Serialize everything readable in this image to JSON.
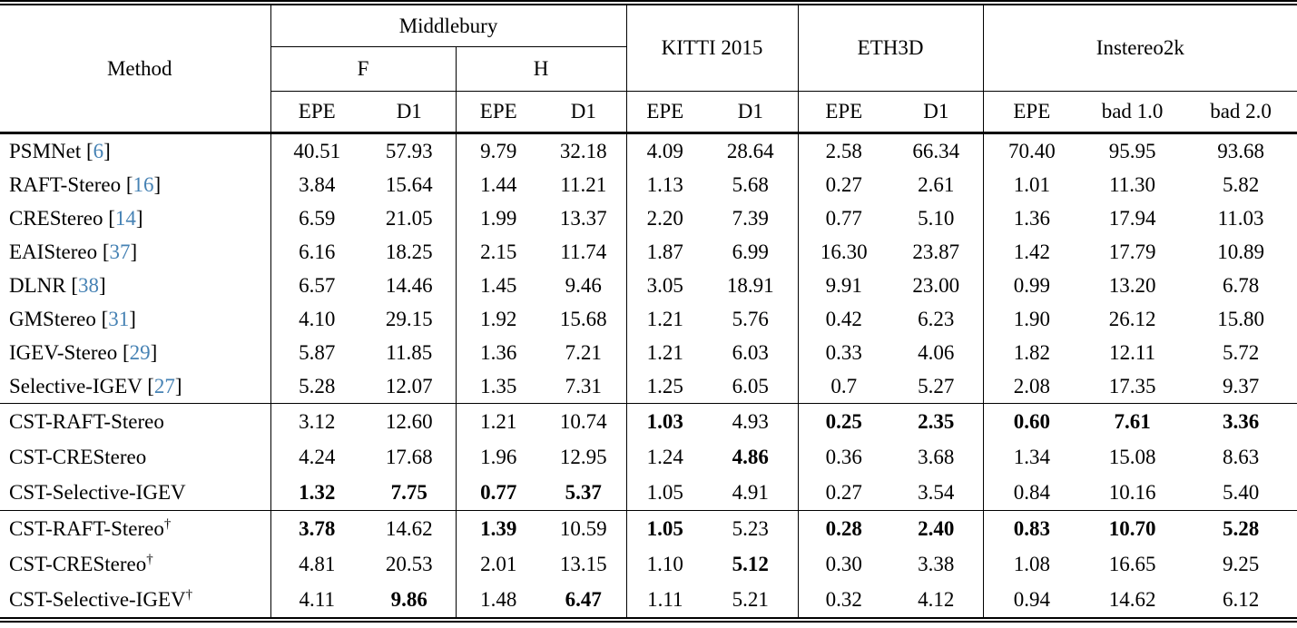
{
  "colors": {
    "citation_blue": "#4682b4",
    "text": "#000000",
    "background": "#ffffff"
  },
  "header": {
    "method_label": "Method",
    "middlebury": {
      "label": "Middlebury",
      "f": "F",
      "h": "H"
    },
    "kitti": "KITTI 2015",
    "eth3d": "ETH3D",
    "instereo2k": "Instereo2k",
    "metrics": [
      "EPE",
      "D1",
      "EPE",
      "D1",
      "EPE",
      "D1",
      "EPE",
      "D1",
      "EPE",
      "bad 1.0",
      "bad 2.0"
    ]
  },
  "sections": [
    {
      "rows": [
        {
          "method": "PSMNet",
          "cite": "6",
          "dagger": false,
          "values": [
            "40.51",
            "57.93",
            "9.79",
            "32.18",
            "4.09",
            "28.64",
            "2.58",
            "66.34",
            "70.40",
            "95.95",
            "93.68"
          ],
          "bold": [
            0,
            0,
            0,
            0,
            0,
            0,
            0,
            0,
            0,
            0,
            0
          ]
        },
        {
          "method": "RAFT-Stereo",
          "cite": "16",
          "dagger": false,
          "values": [
            "3.84",
            "15.64",
            "1.44",
            "11.21",
            "1.13",
            "5.68",
            "0.27",
            "2.61",
            "1.01",
            "11.30",
            "5.82"
          ],
          "bold": [
            0,
            0,
            0,
            0,
            0,
            0,
            0,
            0,
            0,
            0,
            0
          ]
        },
        {
          "method": "CREStereo",
          "cite": "14",
          "dagger": false,
          "values": [
            "6.59",
            "21.05",
            "1.99",
            "13.37",
            "2.20",
            "7.39",
            "0.77",
            "5.10",
            "1.36",
            "17.94",
            "11.03"
          ],
          "bold": [
            0,
            0,
            0,
            0,
            0,
            0,
            0,
            0,
            0,
            0,
            0
          ]
        },
        {
          "method": "EAIStereo",
          "cite": "37",
          "dagger": false,
          "values": [
            "6.16",
            "18.25",
            "2.15",
            "11.74",
            "1.87",
            "6.99",
            "16.30",
            "23.87",
            "1.42",
            "17.79",
            "10.89"
          ],
          "bold": [
            0,
            0,
            0,
            0,
            0,
            0,
            0,
            0,
            0,
            0,
            0
          ]
        },
        {
          "method": "DLNR",
          "cite": "38",
          "dagger": false,
          "values": [
            "6.57",
            "14.46",
            "1.45",
            "9.46",
            "3.05",
            "18.91",
            "9.91",
            "23.00",
            "0.99",
            "13.20",
            "6.78"
          ],
          "bold": [
            0,
            0,
            0,
            0,
            0,
            0,
            0,
            0,
            0,
            0,
            0
          ]
        },
        {
          "method": "GMStereo",
          "cite": "31",
          "dagger": false,
          "values": [
            "4.10",
            "29.15",
            "1.92",
            "15.68",
            "1.21",
            "5.76",
            "0.42",
            "6.23",
            "1.90",
            "26.12",
            "15.80"
          ],
          "bold": [
            0,
            0,
            0,
            0,
            0,
            0,
            0,
            0,
            0,
            0,
            0
          ]
        },
        {
          "method": "IGEV-Stereo",
          "cite": "29",
          "dagger": false,
          "values": [
            "5.87",
            "11.85",
            "1.36",
            "7.21",
            "1.21",
            "6.03",
            "0.33",
            "4.06",
            "1.82",
            "12.11",
            "5.72"
          ],
          "bold": [
            0,
            0,
            0,
            0,
            0,
            0,
            0,
            0,
            0,
            0,
            0
          ]
        },
        {
          "method": "Selective-IGEV",
          "cite": "27",
          "dagger": false,
          "values": [
            "5.28",
            "12.07",
            "1.35",
            "7.31",
            "1.25",
            "6.05",
            "0.7",
            "5.27",
            "2.08",
            "17.35",
            "9.37"
          ],
          "bold": [
            0,
            0,
            0,
            0,
            0,
            0,
            0,
            0,
            0,
            0,
            0
          ]
        }
      ]
    },
    {
      "rows": [
        {
          "method": "CST-RAFT-Stereo",
          "cite": null,
          "dagger": false,
          "values": [
            "3.12",
            "12.60",
            "1.21",
            "10.74",
            "1.03",
            "4.93",
            "0.25",
            "2.35",
            "0.60",
            "7.61",
            "3.36"
          ],
          "bold": [
            0,
            0,
            0,
            0,
            1,
            0,
            1,
            1,
            1,
            1,
            1
          ]
        },
        {
          "method": "CST-CREStereo",
          "cite": null,
          "dagger": false,
          "values": [
            "4.24",
            "17.68",
            "1.96",
            "12.95",
            "1.24",
            "4.86",
            "0.36",
            "3.68",
            "1.34",
            "15.08",
            "8.63"
          ],
          "bold": [
            0,
            0,
            0,
            0,
            0,
            1,
            0,
            0,
            0,
            0,
            0
          ]
        },
        {
          "method": "CST-Selective-IGEV",
          "cite": null,
          "dagger": false,
          "values": [
            "1.32",
            "7.75",
            "0.77",
            "5.37",
            "1.05",
            "4.91",
            "0.27",
            "3.54",
            "0.84",
            "10.16",
            "5.40"
          ],
          "bold": [
            1,
            1,
            1,
            1,
            0,
            0,
            0,
            0,
            0,
            0,
            0
          ]
        }
      ]
    },
    {
      "rows": [
        {
          "method": "CST-RAFT-Stereo",
          "cite": null,
          "dagger": true,
          "values": [
            "3.78",
            "14.62",
            "1.39",
            "10.59",
            "1.05",
            "5.23",
            "0.28",
            "2.40",
            "0.83",
            "10.70",
            "5.28"
          ],
          "bold": [
            1,
            0,
            1,
            0,
            1,
            0,
            1,
            1,
            1,
            1,
            1
          ]
        },
        {
          "method": "CST-CREStereo",
          "cite": null,
          "dagger": true,
          "values": [
            "4.81",
            "20.53",
            "2.01",
            "13.15",
            "1.10",
            "5.12",
            "0.30",
            "3.38",
            "1.08",
            "16.65",
            "9.25"
          ],
          "bold": [
            0,
            0,
            0,
            0,
            0,
            1,
            0,
            0,
            0,
            0,
            0
          ]
        },
        {
          "method": "CST-Selective-IGEV",
          "cite": null,
          "dagger": true,
          "values": [
            "4.11",
            "9.86",
            "1.48",
            "6.47",
            "1.11",
            "5.21",
            "0.32",
            "4.12",
            "0.94",
            "14.62",
            "6.12"
          ],
          "bold": [
            0,
            1,
            0,
            1,
            0,
            0,
            0,
            0,
            0,
            0,
            0
          ]
        }
      ]
    }
  ]
}
